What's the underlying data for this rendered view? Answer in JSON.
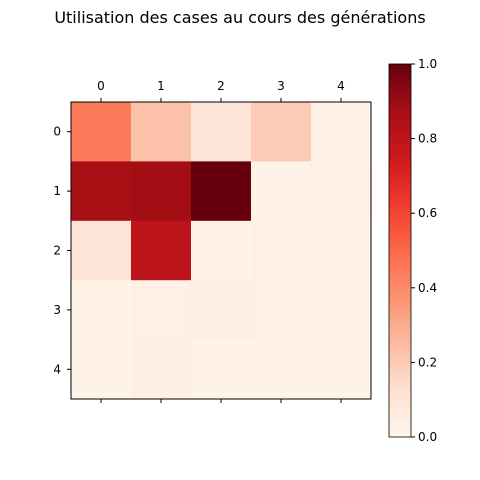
{
  "chart_data": {
    "type": "heatmap",
    "title": "Utilisation des cases au cours des générations",
    "x_categories": [
      "0",
      "1",
      "2",
      "3",
      "4"
    ],
    "y_categories": [
      "0",
      "1",
      "2",
      "3",
      "4"
    ],
    "x_axis_position": "top",
    "values": [
      [
        0.45,
        0.23,
        0.1,
        0.2,
        0.02
      ],
      [
        0.87,
        0.88,
        1.0,
        0.02,
        0.03
      ],
      [
        0.1,
        0.8,
        0.02,
        0.03,
        0.02
      ],
      [
        0.02,
        0.03,
        0.04,
        0.03,
        0.02
      ],
      [
        0.02,
        0.04,
        0.02,
        0.02,
        0.02
      ]
    ],
    "colormap": "Reds",
    "colorbar": {
      "range": [
        0.0,
        1.0
      ],
      "ticks": [
        "0.0",
        "0.2",
        "0.4",
        "0.6",
        "0.8",
        "1.0"
      ],
      "placement": "right"
    },
    "grid": false
  }
}
